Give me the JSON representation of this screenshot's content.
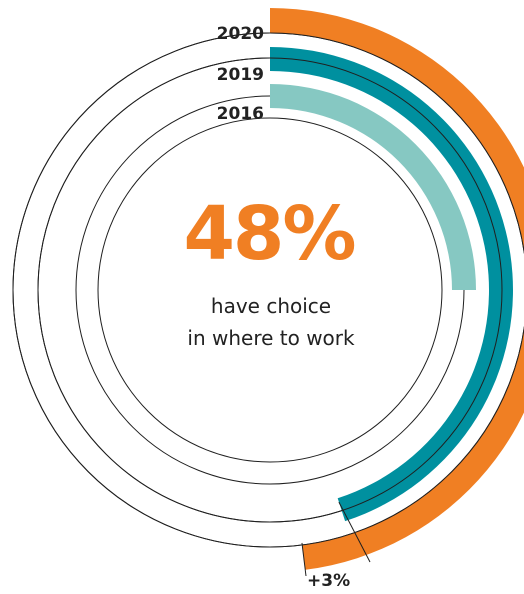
{
  "chart_data": {
    "type": "radial-bar",
    "unit": "%",
    "series": [
      {
        "category": "2020",
        "value": 48,
        "color": "#F07F23"
      },
      {
        "category": "2019",
        "value": 45,
        "color": "#00909F"
      },
      {
        "category": "2016",
        "value": 25,
        "color": "#86C8C2"
      }
    ],
    "headline": {
      "value": "48%",
      "color": "#F07F23",
      "line1": "have choice",
      "line2": "in where to work"
    },
    "annotations": [
      {
        "text": "+3%",
        "from": "2019",
        "to": "2020"
      }
    ]
  }
}
